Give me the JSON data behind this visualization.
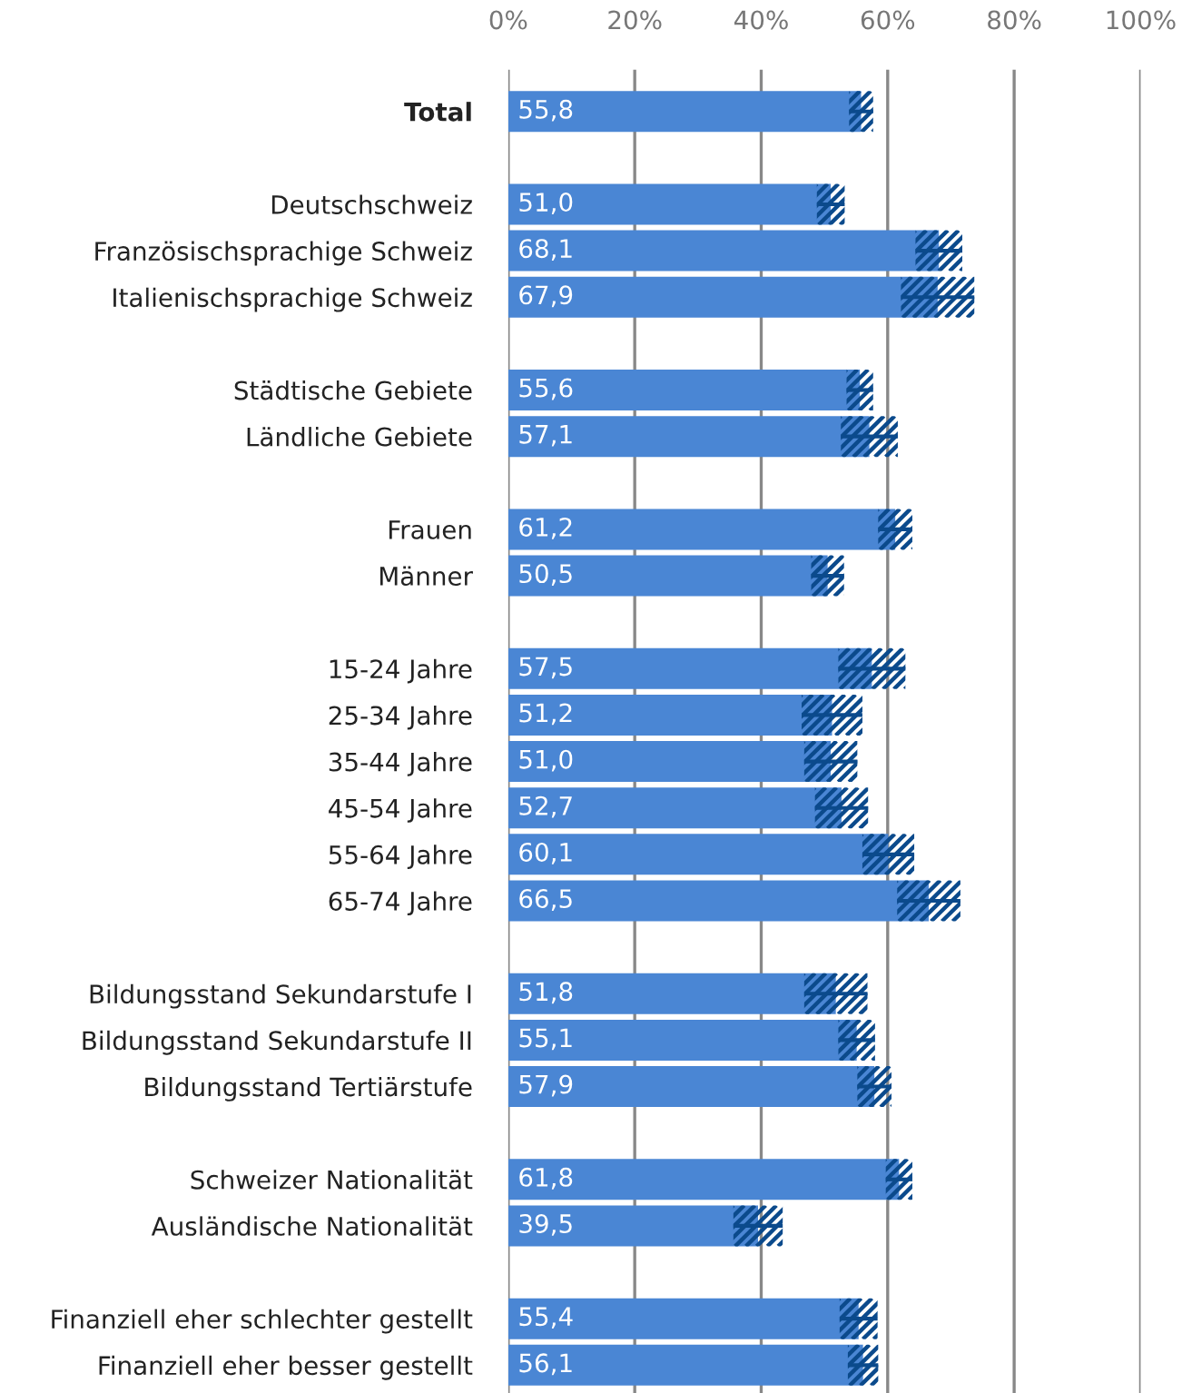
{
  "chart_data": {
    "type": "bar",
    "orientation": "horizontal",
    "categories": [
      "Total",
      null,
      "Deutschschweiz",
      "Französischsprachige Schweiz",
      "Italienischsprachige Schweiz",
      null,
      "Städtische Gebiete",
      "Ländliche Gebiete",
      null,
      "Frauen",
      "Männer",
      null,
      "15-24 Jahre",
      "25-34 Jahre",
      "35-44 Jahre",
      "45-54 Jahre",
      "55-64 Jahre",
      "65-74 Jahre",
      null,
      "Bildungsstand Sekundarstufe I",
      "Bildungsstand Sekundarstufe II",
      "Bildungsstand Tertiärstufe",
      null,
      "Schweizer Nationalität",
      "Ausländische Nationalität",
      null,
      "Finanziell eher schlechter gestellt",
      "Finanziell eher besser gestellt"
    ],
    "values": [
      55.8,
      null,
      51.0,
      68.1,
      67.9,
      null,
      55.6,
      57.1,
      null,
      61.2,
      50.5,
      null,
      57.5,
      51.2,
      51.0,
      52.7,
      60.1,
      66.5,
      null,
      51.8,
      55.1,
      57.9,
      null,
      61.8,
      39.5,
      null,
      55.4,
      56.1
    ],
    "errors": [
      1.9,
      null,
      2.2,
      3.7,
      5.8,
      null,
      2.1,
      4.5,
      null,
      2.7,
      2.6,
      null,
      5.3,
      4.8,
      4.2,
      4.2,
      4.1,
      5.0,
      null,
      5.0,
      2.9,
      2.7,
      null,
      2.1,
      3.9,
      null,
      3.0,
      2.4
    ],
    "value_labels": [
      "55,8",
      null,
      "51,0",
      "68,1",
      "67,9",
      null,
      "55,6",
      "57,1",
      null,
      "61,2",
      "50,5",
      null,
      "57,5",
      "51,2",
      "51,0",
      "52,7",
      "60,1",
      "66,5",
      null,
      "51,8",
      "55,1",
      "57,9",
      null,
      "61,8",
      "39,5",
      null,
      "55,4",
      "56,1"
    ],
    "color": "#4a86d4",
    "xlim": [
      0,
      100
    ],
    "xticks": [
      {
        "value": 0,
        "label": "0%"
      },
      {
        "value": 20,
        "label": "20%"
      },
      {
        "value": 40,
        "label": "40%"
      },
      {
        "value": 60,
        "label": "60%"
      },
      {
        "value": 80,
        "label": "80%"
      },
      {
        "value": 100,
        "label": "100%"
      }
    ],
    "grid": "x",
    "legend": false
  }
}
